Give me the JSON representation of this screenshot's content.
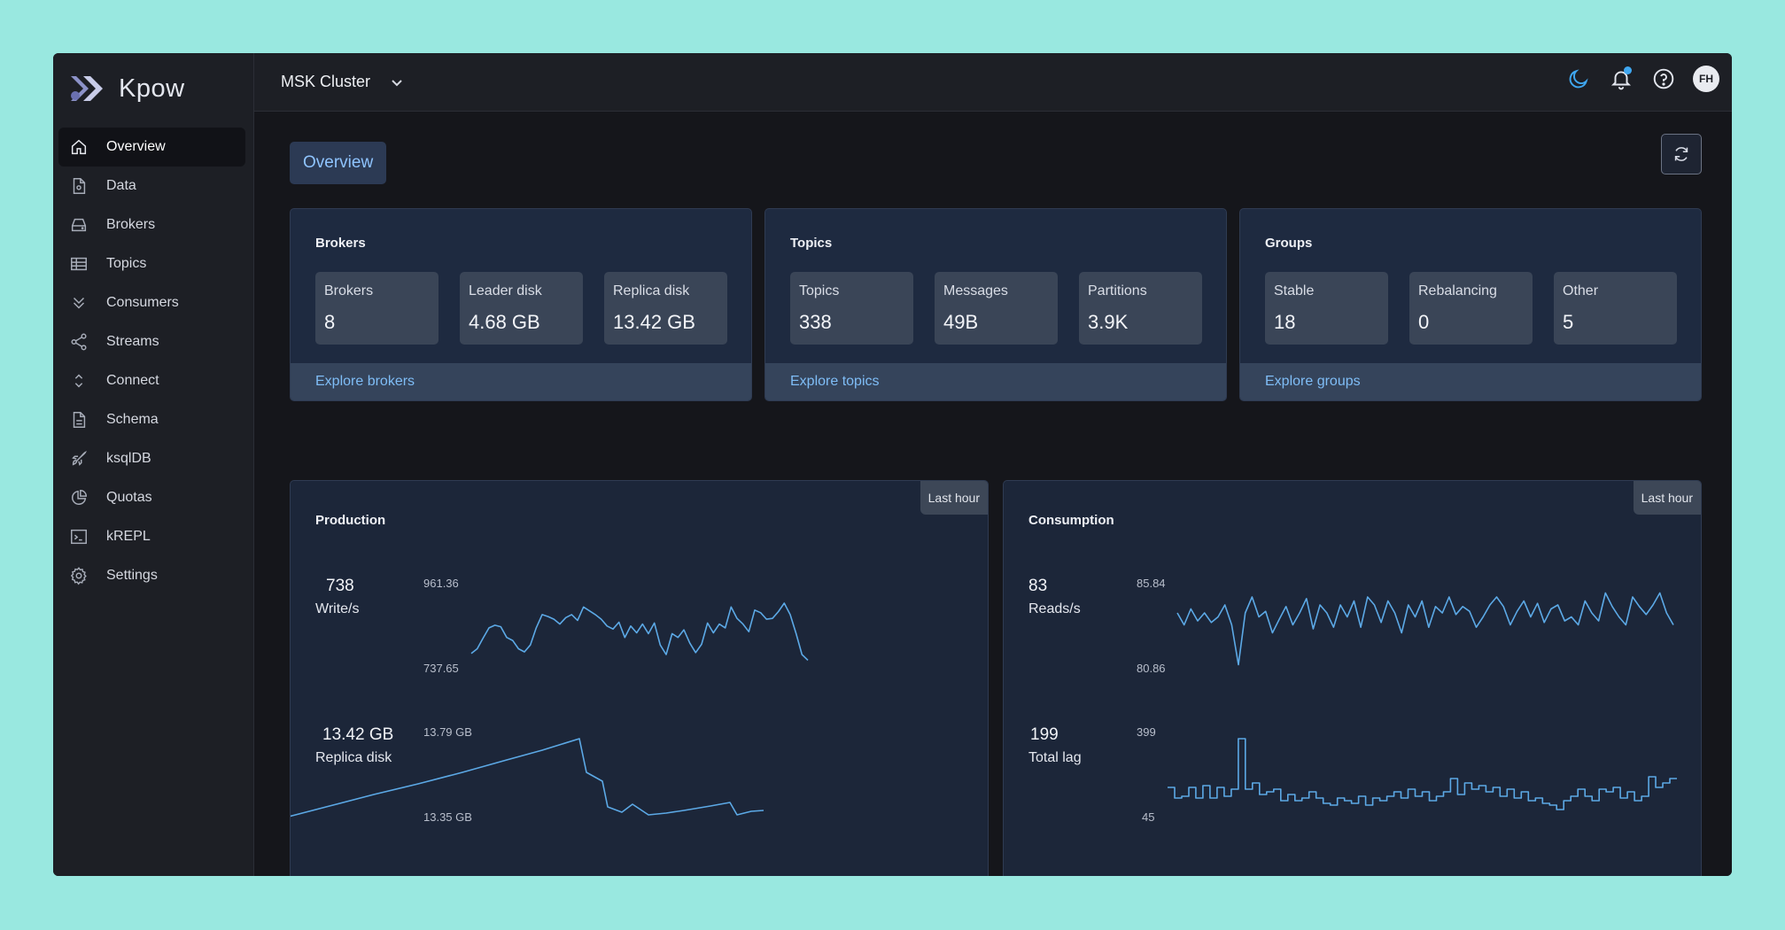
{
  "app": {
    "name": "Kpow"
  },
  "sidebar": {
    "items": [
      {
        "label": "Overview",
        "icon": "home-icon",
        "active": true
      },
      {
        "label": "Data",
        "icon": "document-icon"
      },
      {
        "label": "Brokers",
        "icon": "hard-drive-icon"
      },
      {
        "label": "Topics",
        "icon": "table-icon"
      },
      {
        "label": "Consumers",
        "icon": "double-chevron-down-icon"
      },
      {
        "label": "Streams",
        "icon": "share-icon"
      },
      {
        "label": "Connect",
        "icon": "chevron-up-down-icon"
      },
      {
        "label": "Schema",
        "icon": "file-text-icon"
      },
      {
        "label": "ksqlDB",
        "icon": "rocket-icon"
      },
      {
        "label": "Quotas",
        "icon": "pie-chart-icon"
      },
      {
        "label": "kREPL",
        "icon": "terminal-icon"
      },
      {
        "label": "Settings",
        "icon": "gear-icon"
      }
    ]
  },
  "header": {
    "cluster": "MSK Cluster",
    "avatar_initials": "FH",
    "accent": "#3fa7f0"
  },
  "page": {
    "tab": "Overview"
  },
  "summary": {
    "brokers": {
      "title": "Brokers",
      "stats": [
        {
          "label": "Brokers",
          "value": "8"
        },
        {
          "label": "Leader disk",
          "value": "4.68 GB"
        },
        {
          "label": "Replica disk",
          "value": "13.42 GB"
        }
      ],
      "link": "Explore brokers"
    },
    "topics": {
      "title": "Topics",
      "stats": [
        {
          "label": "Topics",
          "value": "338"
        },
        {
          "label": "Messages",
          "value": "49B"
        },
        {
          "label": "Partitions",
          "value": "3.9K"
        }
      ],
      "link": "Explore topics"
    },
    "groups": {
      "title": "Groups",
      "stats": [
        {
          "label": "Stable",
          "value": "18"
        },
        {
          "label": "Rebalancing",
          "value": "0"
        },
        {
          "label": "Other",
          "value": "5"
        }
      ],
      "link": "Explore groups"
    }
  },
  "production": {
    "title": "Production",
    "range": "Last hour",
    "writes": {
      "value": "738",
      "label": "Write/s",
      "max": "961.36",
      "min": "737.65",
      "points": [
        778,
        790,
        818,
        845,
        852,
        848,
        820,
        812,
        790,
        782,
        800,
        845,
        880,
        875,
        868,
        855,
        872,
        880,
        865,
        900,
        890,
        880,
        868,
        850,
        842,
        860,
        820,
        850,
        832,
        855,
        830,
        858,
        800,
        775,
        830,
        820,
        840,
        805,
        780,
        802,
        858,
        832,
        855,
        845,
        900,
        870,
        855,
        835,
        892,
        885,
        868,
        870,
        888,
        910,
        880,
        830,
        775,
        760
      ]
    },
    "replica": {
      "value": "13.42 GB",
      "label": "Replica disk",
      "max": "13.79 GB",
      "min": "13.35 GB"
    }
  },
  "consumption": {
    "title": "Consumption",
    "range": "Last hour",
    "reads": {
      "value": "83",
      "label": "Reads/s",
      "max": "85.84",
      "min": "80.86"
    },
    "lag": {
      "value": "199",
      "label": "Total lag",
      "max": "399",
      "min": "45"
    }
  }
}
